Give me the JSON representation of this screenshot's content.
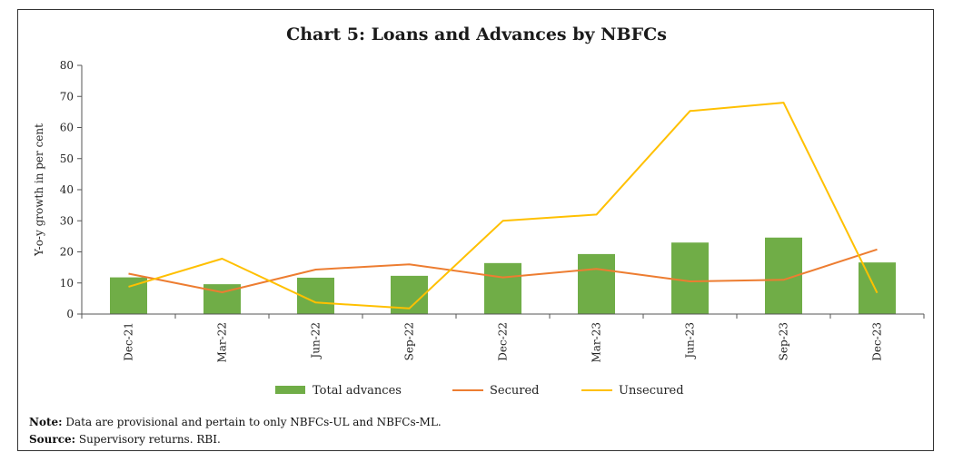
{
  "chart_data": {
    "type": "bar",
    "title": "Chart 5: Loans and Advances by NBFCs",
    "ylabel": "Y-o-y growth in per cent",
    "xlabel": "",
    "ylim": [
      0,
      80
    ],
    "yticks": [
      0,
      10,
      20,
      30,
      40,
      50,
      60,
      70,
      80
    ],
    "categories": [
      "Dec-21",
      "Mar-22",
      "Jun-22",
      "Sep-22",
      "Dec-22",
      "Mar-23",
      "Jun-23",
      "Sep-23",
      "Dec-23"
    ],
    "series": [
      {
        "name": "Total advances",
        "kind": "bar",
        "color": "#70AD47",
        "values": [
          11.8,
          9.6,
          11.7,
          12.3,
          16.4,
          19.3,
          23.0,
          24.6,
          16.6
        ]
      },
      {
        "name": "Secured",
        "kind": "line",
        "color": "#ED7D31",
        "values": [
          13.0,
          7.0,
          14.3,
          16.0,
          11.8,
          14.5,
          10.5,
          11.0,
          20.8
        ]
      },
      {
        "name": "Unsecured",
        "kind": "line",
        "color": "#FFC000",
        "values": [
          8.8,
          17.8,
          3.7,
          1.8,
          30.0,
          32.0,
          65.3,
          68.0,
          6.8
        ]
      }
    ],
    "legend_position": "bottom",
    "grid": false
  },
  "notes": {
    "note_label": "Note:",
    "note_text": " Data are provisional and pertain to only NBFCs-UL and NBFCs-ML.",
    "source_label": "Source:",
    "source_text": " Supervisory returns. RBI."
  }
}
